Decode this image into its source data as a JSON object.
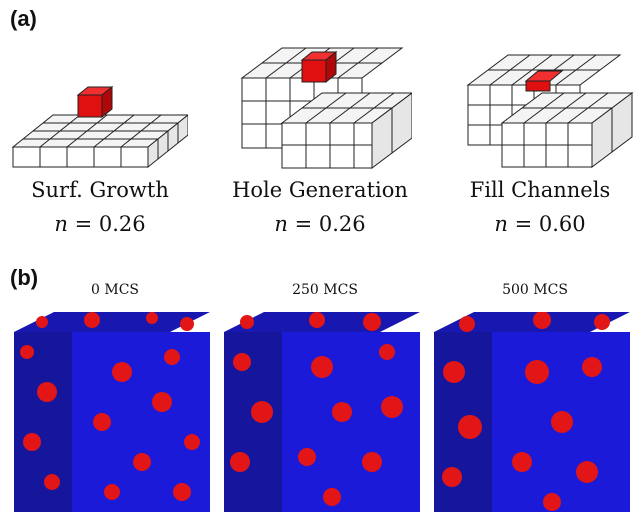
{
  "panel_a": {
    "label": "(a)",
    "items": [
      {
        "caption": "Surf. Growth",
        "n_var": "n",
        "n_value": "= 0.26"
      },
      {
        "caption": "Hole Generation",
        "n_var": "n",
        "n_value": "= 0.26"
      },
      {
        "caption": "Fill Channels",
        "n_var": "n",
        "n_value": "= 0.60"
      }
    ]
  },
  "panel_b": {
    "label": "(b)",
    "items": [
      {
        "time": "0 MCS"
      },
      {
        "time": "250 MCS"
      },
      {
        "time": "500 MCS"
      }
    ]
  },
  "colors": {
    "cube_face": "#f4f4f4",
    "cube_edge": "#222222",
    "highlight": "#e01010",
    "matrix": "#1a1ad8",
    "grain": "#e21616"
  }
}
